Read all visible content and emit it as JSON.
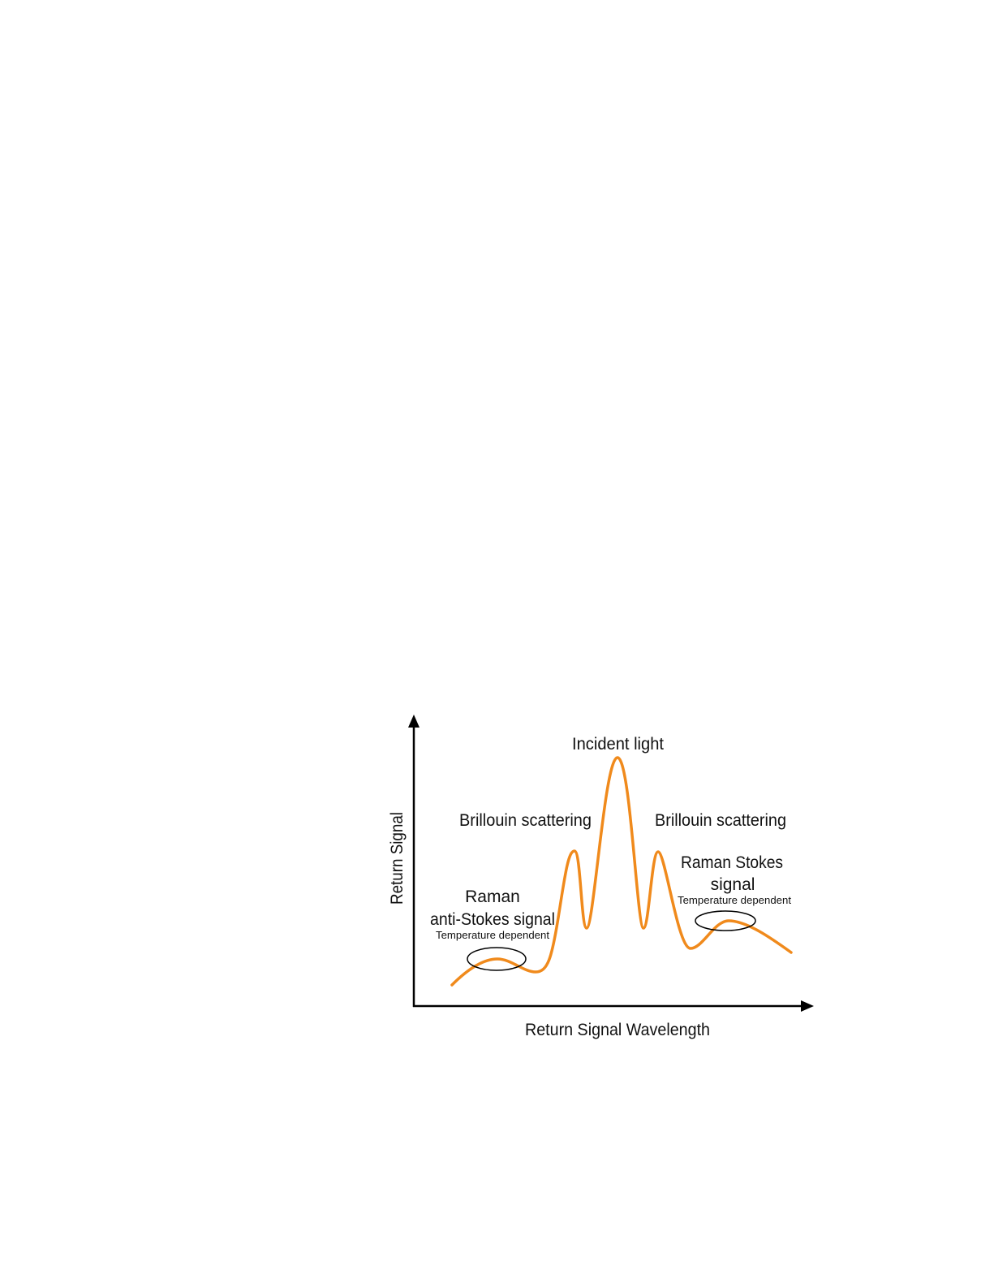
{
  "diagram": {
    "axes": {
      "x_label": "Return Signal Wavelength",
      "y_label": "Return Signal"
    },
    "labels": {
      "incident": "Incident light",
      "brillouin_left": "Brillouin scattering",
      "brillouin_right": "Brillouin scattering",
      "raman_stokes_line1": "Raman Stokes",
      "raman_stokes_line2": "signal",
      "raman_stokes_note": "Temperature dependent",
      "raman_anti_line1": "Raman",
      "raman_anti_line2": "anti-Stokes signal",
      "raman_anti_note": "Temperature dependent"
    },
    "colors": {
      "curve": "#F08A1C",
      "axes": "#000000"
    }
  }
}
